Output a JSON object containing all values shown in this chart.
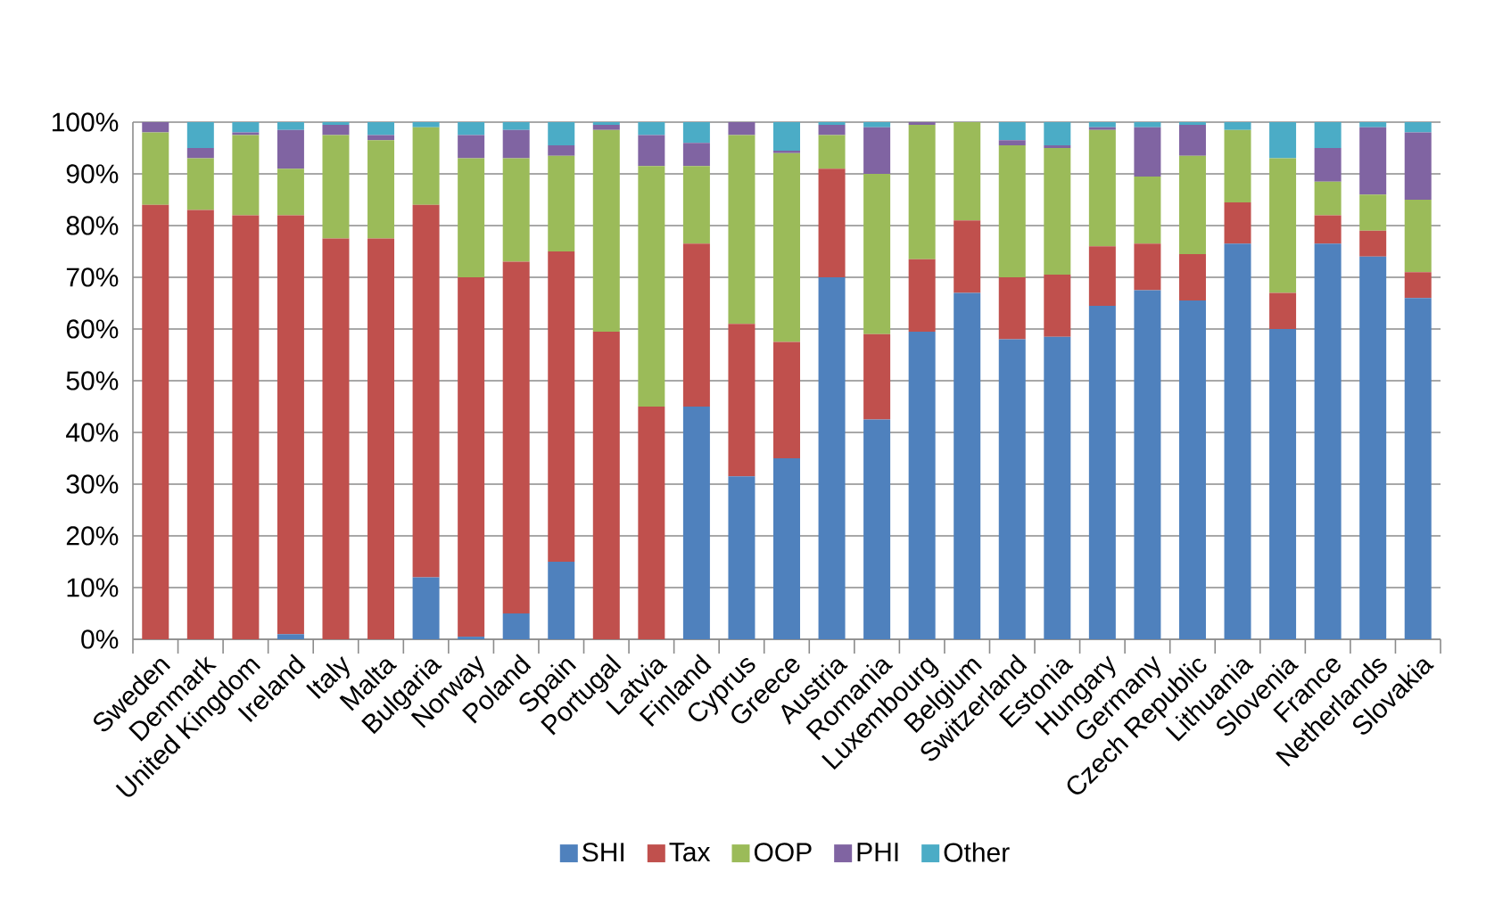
{
  "chart_data": {
    "type": "bar",
    "stacked": true,
    "grid": "y",
    "legend": "bottom",
    "categories": [
      "Sweden",
      "Denmark",
      "United Kingdom",
      "Ireland",
      "Italy",
      "Malta",
      "Bulgaria",
      "Norway",
      "Poland",
      "Spain",
      "Portugal",
      "Latvia",
      "Finland",
      "Cyprus",
      "Greece",
      "Austria",
      "Romania",
      "Luxembourg",
      "Belgium",
      "Switzerland",
      "Estonia",
      "Hungary",
      "Germany",
      "Czech Republic",
      "Lithuania",
      "Slovenia",
      "France",
      "Netherlands",
      "Slovakia"
    ],
    "ylim": [
      0,
      100
    ],
    "yticks": [
      {
        "value": 0,
        "label": "0%"
      },
      {
        "value": 10,
        "label": "10%"
      },
      {
        "value": 20,
        "label": "20%"
      },
      {
        "value": 30,
        "label": "30%"
      },
      {
        "value": 40,
        "label": "40%"
      },
      {
        "value": 50,
        "label": "50%"
      },
      {
        "value": 60,
        "label": "60%"
      },
      {
        "value": 70,
        "label": "70%"
      },
      {
        "value": 80,
        "label": "80%"
      },
      {
        "value": 90,
        "label": "90%"
      },
      {
        "value": 100,
        "label": "100%"
      }
    ],
    "series": [
      {
        "name": "SHI",
        "color": "#4f81bd",
        "values": [
          0,
          0,
          0,
          1,
          0,
          0,
          12,
          0.5,
          5,
          15,
          0,
          0,
          45,
          31.5,
          35,
          70,
          42.5,
          59.5,
          67,
          58,
          58.5,
          64.5,
          67.5,
          65.5,
          76.5,
          60,
          76.5,
          74,
          66
        ]
      },
      {
        "name": "Tax",
        "color": "#c0504d",
        "values": [
          84,
          83,
          82,
          81,
          77.5,
          77.5,
          72,
          69.5,
          68,
          60,
          59.5,
          45,
          31.5,
          29.5,
          22.5,
          21,
          16.5,
          14,
          14,
          12,
          12,
          11.5,
          9,
          9,
          8,
          7,
          5.5,
          5,
          5
        ]
      },
      {
        "name": "OOP",
        "color": "#9bbb59",
        "values": [
          14,
          10,
          15.5,
          9,
          20,
          19,
          15,
          23,
          20,
          18.5,
          39,
          46.5,
          15,
          36.5,
          36.5,
          6.5,
          31,
          26,
          19,
          25.5,
          24.5,
          22.5,
          13,
          19,
          14,
          26,
          6.5,
          7,
          14
        ]
      },
      {
        "name": "PHI",
        "color": "#8064a2",
        "values": [
          2,
          2,
          0.5,
          7.5,
          2,
          1,
          0,
          4.5,
          5.5,
          2,
          1,
          6,
          4.5,
          2.5,
          0.5,
          2,
          9,
          0.5,
          0,
          1,
          0.5,
          0.5,
          9.5,
          6,
          0,
          0,
          6.5,
          13,
          13
        ]
      },
      {
        "name": "Other",
        "color": "#4bacc6",
        "values": [
          0,
          5,
          2,
          1.5,
          0.5,
          2.5,
          1,
          2.5,
          1.5,
          4.5,
          0.5,
          2.5,
          4,
          0,
          5.5,
          0.5,
          1,
          0,
          0,
          3.5,
          4.5,
          1,
          1,
          0.5,
          1.5,
          7,
          5,
          1,
          2
        ]
      }
    ]
  }
}
